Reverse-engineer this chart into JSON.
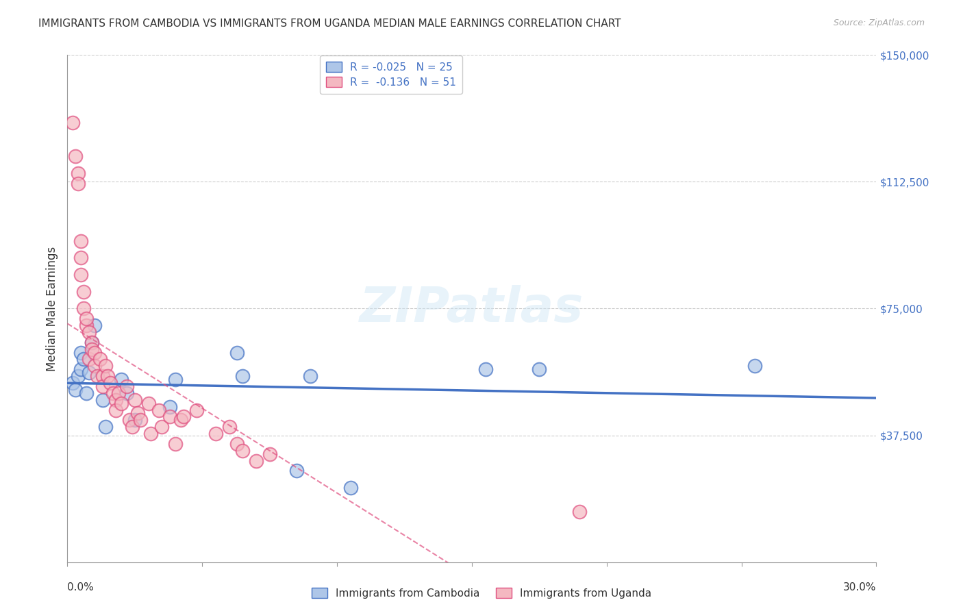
{
  "title": "IMMIGRANTS FROM CAMBODIA VS IMMIGRANTS FROM UGANDA MEDIAN MALE EARNINGS CORRELATION CHART",
  "source": "Source: ZipAtlas.com",
  "ylabel": "Median Male Earnings",
  "legend_entries": [
    {
      "label": "R = -0.025   N = 25",
      "color": "#aec6e8"
    },
    {
      "label": "R =  -0.136   N = 51",
      "color": "#f4b8c1"
    }
  ],
  "legend_bottom": [
    "Immigrants from Cambodia",
    "Immigrants from Uganda"
  ],
  "watermark": "ZIPatlas",
  "background_color": "#ffffff",
  "grid_color": "#cccccc",
  "title_color": "#333333",
  "cambodia_color": "#aec6e8",
  "cambodia_line_color": "#4472c4",
  "uganda_color": "#f4b8c1",
  "uganda_line_color": "#e05080",
  "xlim": [
    0.0,
    0.3
  ],
  "ylim": [
    0,
    150000
  ],
  "cambodia_x": [
    0.002,
    0.003,
    0.004,
    0.005,
    0.005,
    0.006,
    0.007,
    0.008,
    0.009,
    0.01,
    0.013,
    0.014,
    0.02,
    0.022,
    0.025,
    0.038,
    0.04,
    0.063,
    0.065,
    0.085,
    0.09,
    0.105,
    0.155,
    0.175,
    0.255
  ],
  "cambodia_y": [
    53000,
    51000,
    55000,
    62000,
    57000,
    60000,
    50000,
    56000,
    65000,
    70000,
    48000,
    40000,
    54000,
    50000,
    42000,
    46000,
    54000,
    62000,
    55000,
    27000,
    55000,
    22000,
    57000,
    57000,
    58000
  ],
  "uganda_x": [
    0.002,
    0.003,
    0.004,
    0.004,
    0.005,
    0.005,
    0.005,
    0.006,
    0.006,
    0.007,
    0.007,
    0.008,
    0.008,
    0.009,
    0.009,
    0.01,
    0.01,
    0.011,
    0.012,
    0.013,
    0.013,
    0.014,
    0.015,
    0.016,
    0.017,
    0.018,
    0.018,
    0.019,
    0.02,
    0.022,
    0.023,
    0.024,
    0.025,
    0.026,
    0.027,
    0.03,
    0.031,
    0.034,
    0.035,
    0.038,
    0.04,
    0.042,
    0.043,
    0.048,
    0.055,
    0.06,
    0.063,
    0.065,
    0.07,
    0.075,
    0.19
  ],
  "uganda_y": [
    130000,
    120000,
    115000,
    112000,
    95000,
    90000,
    85000,
    80000,
    75000,
    70000,
    72000,
    68000,
    60000,
    65000,
    63000,
    62000,
    58000,
    55000,
    60000,
    55000,
    52000,
    58000,
    55000,
    53000,
    50000,
    48000,
    45000,
    50000,
    47000,
    52000,
    42000,
    40000,
    48000,
    44000,
    42000,
    47000,
    38000,
    45000,
    40000,
    43000,
    35000,
    42000,
    43000,
    45000,
    38000,
    40000,
    35000,
    33000,
    30000,
    32000,
    15000
  ]
}
